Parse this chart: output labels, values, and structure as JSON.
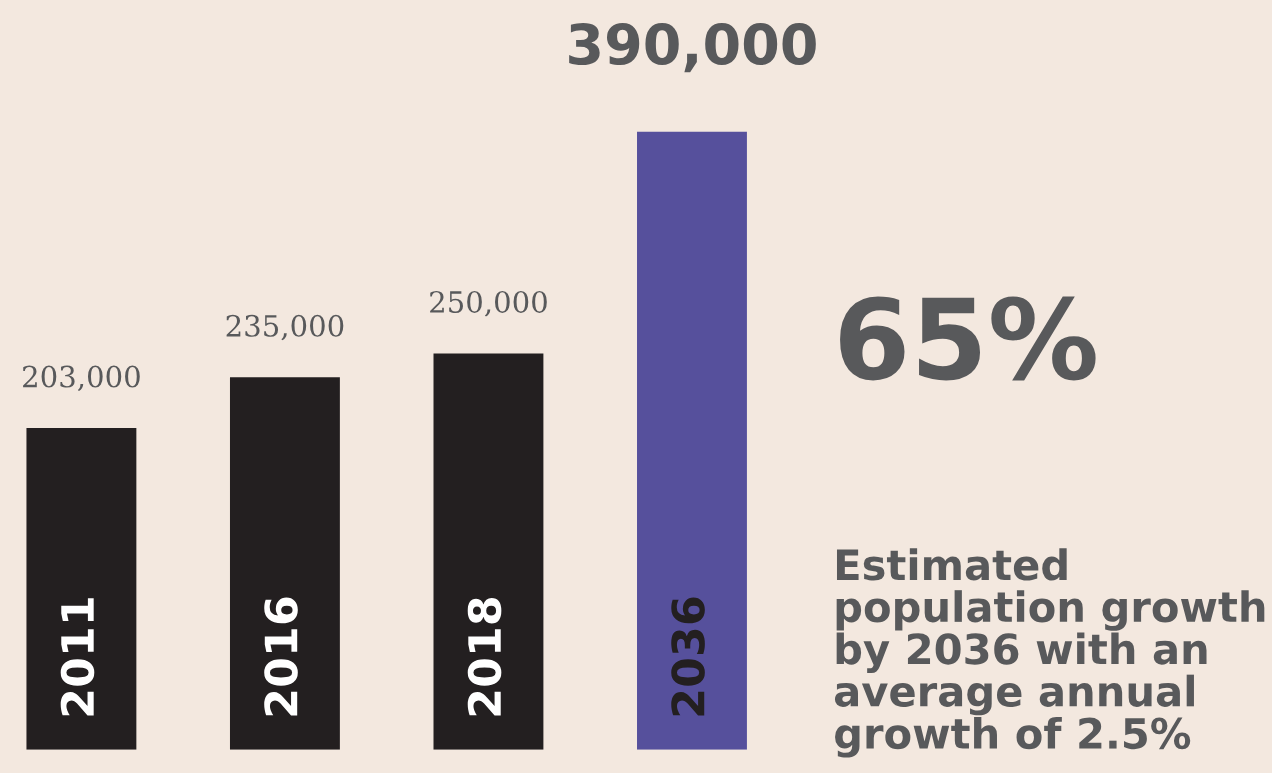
{
  "chart_data": {
    "type": "bar",
    "categories": [
      "2011",
      "2016",
      "2018",
      "2036"
    ],
    "values": [
      203000,
      235000,
      250000,
      390000
    ],
    "colors": [
      "#231f20",
      "#231f20",
      "#231f20",
      "#56509c"
    ],
    "value_labels": [
      "203,000",
      "235,000",
      "250,000",
      "390,000"
    ],
    "annotations": [
      "65%",
      "Estimated population growth by 2036 with an average annual growth of 2.5%"
    ]
  }
}
